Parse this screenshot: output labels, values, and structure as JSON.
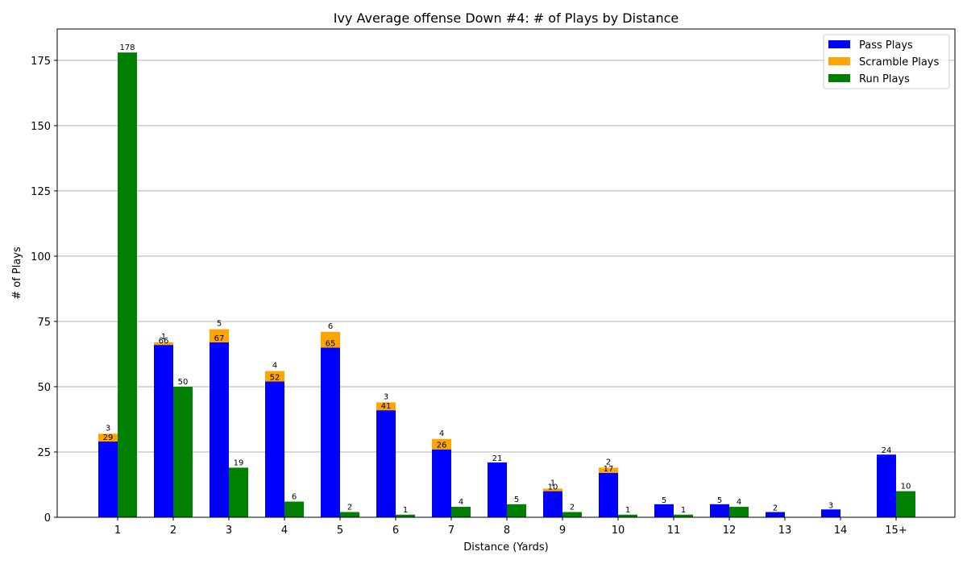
{
  "chart_data": {
    "type": "bar",
    "title": "Ivy Average offense Down #4: # of Plays by Distance",
    "xlabel": "Distance (Yards)",
    "ylabel": "# of Plays",
    "categories": [
      "1",
      "2",
      "3",
      "4",
      "5",
      "6",
      "7",
      "8",
      "9",
      "10",
      "11",
      "12",
      "13",
      "14",
      "15+"
    ],
    "series": [
      {
        "name": "Pass Plays",
        "color": "#0000ff",
        "values": [
          29,
          66,
          67,
          52,
          65,
          41,
          26,
          21,
          10,
          17,
          5,
          5,
          2,
          3,
          24
        ]
      },
      {
        "name": "Scramble Plays",
        "color": "#ffa500",
        "stacked_on": "Pass Plays",
        "values": [
          3,
          1,
          5,
          4,
          6,
          3,
          4,
          0,
          1,
          2,
          0,
          0,
          0,
          0,
          0
        ]
      },
      {
        "name": "Run Plays",
        "color": "#008000",
        "values": [
          178,
          50,
          19,
          6,
          2,
          1,
          4,
          5,
          2,
          1,
          1,
          4,
          0,
          0,
          10
        ]
      }
    ],
    "ylim": [
      0,
      187
    ],
    "yticks": [
      0,
      25,
      50,
      75,
      100,
      125,
      150,
      175
    ],
    "grid": "y",
    "legend_position": "top-right"
  }
}
